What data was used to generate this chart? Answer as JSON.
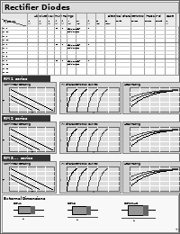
{
  "title": "Rectifier Diodes",
  "bg_color": "#f5f5f5",
  "title_bg": "#e0e0e0",
  "table_bg": "#ffffff",
  "graph_bg": "#d8d8d8",
  "dark_label": "#222222",
  "page_number": "79",
  "section_labels": [
    "RM 1  series",
    "RM 2  series",
    "RM 3...  series"
  ],
  "graph_titles_col1": [
    "Non-linear Derating",
    "Non-linear Derating",
    "Non-linear Derating"
  ],
  "graph_titles_col2": [
    "I-V Characteristics Curves",
    "I-V Characteristics Curves",
    "I-V Characteristics Curves"
  ],
  "graph_titles_col3": [
    "Heat Rating",
    "Heat Rating",
    "Heat Rating"
  ]
}
